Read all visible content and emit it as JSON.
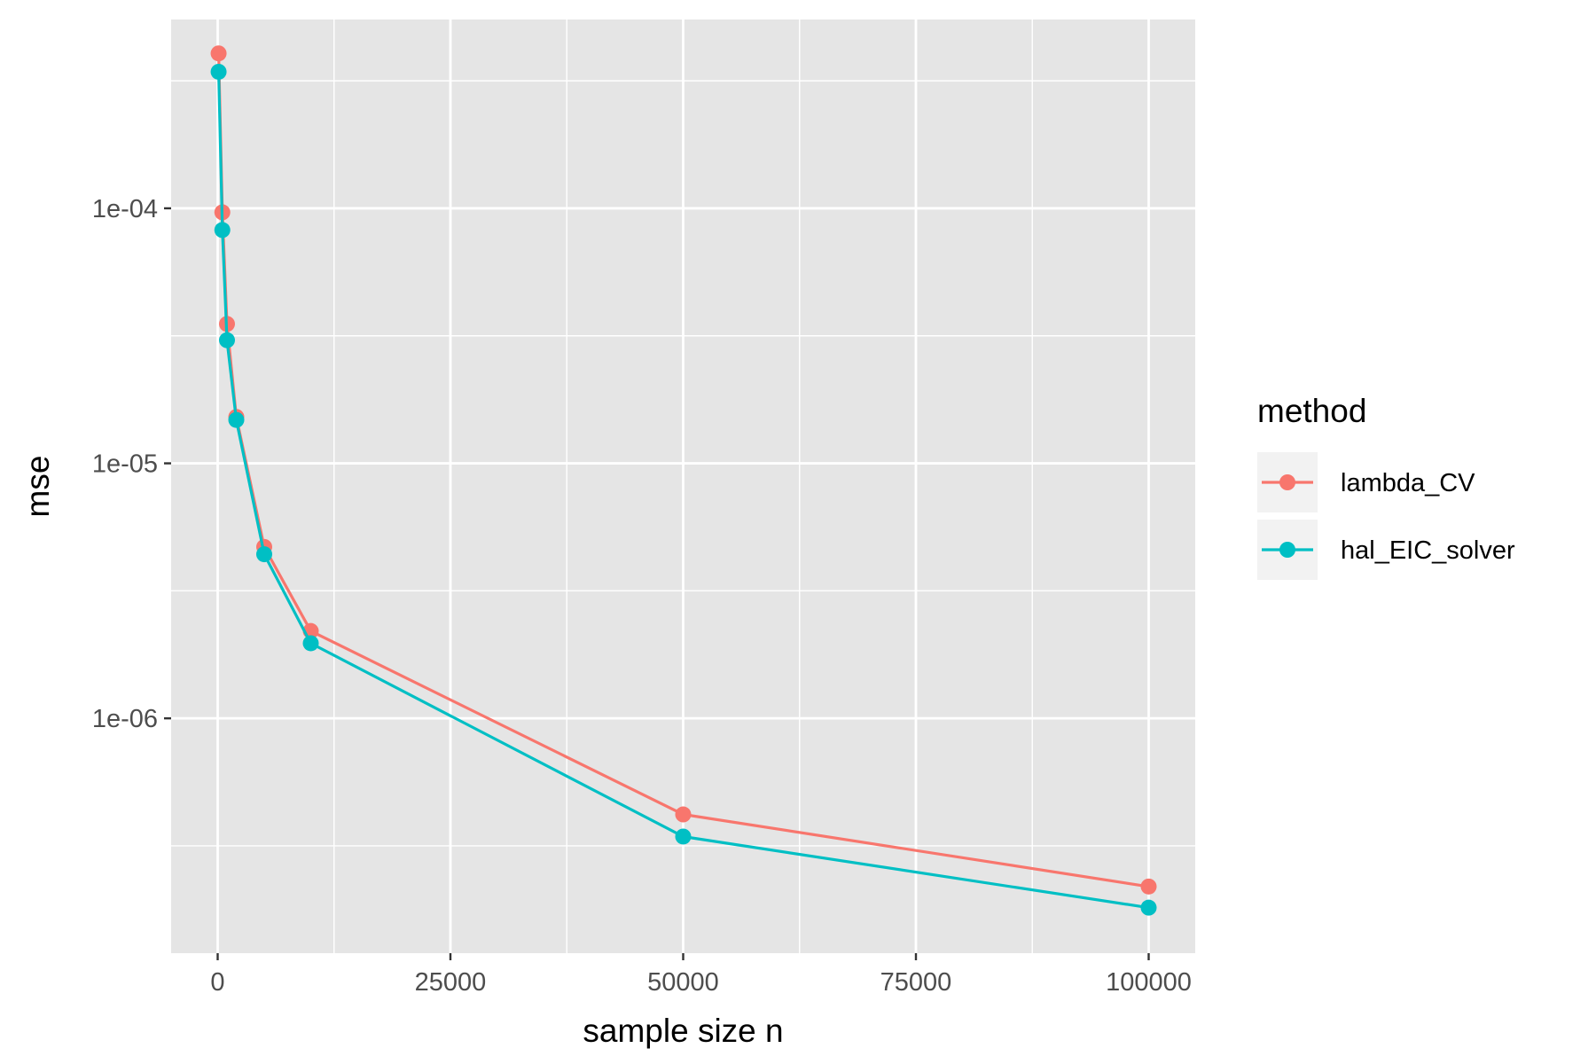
{
  "chart_data": {
    "type": "line",
    "xlabel": "sample size n",
    "ylabel": "mse",
    "x_scale": "linear",
    "y_scale": "log10",
    "xlim": [
      -5000,
      105000
    ],
    "ylim": [
      1.2e-07,
      0.00055
    ],
    "x_ticks": [
      0,
      25000,
      50000,
      75000,
      100000
    ],
    "x_tick_labels": [
      "0",
      "25000",
      "50000",
      "75000",
      "100000"
    ],
    "y_ticks": [
      1e-06,
      1e-05,
      0.0001
    ],
    "y_tick_labels": [
      "1e-06",
      "1e-05",
      "1e-04"
    ],
    "grid": true,
    "panel_background": "#e5e5e5",
    "legend": {
      "title": "method",
      "position": "right",
      "entries": [
        "lambda_CV",
        "hal_EIC_solver"
      ]
    },
    "series": [
      {
        "name": "lambda_CV",
        "color": "#f8766d",
        "x": [
          100,
          500,
          1000,
          2000,
          5000,
          10000,
          50000,
          100000
        ],
        "y": [
          0.000405,
          9.65e-05,
          3.52e-05,
          1.52e-05,
          4.7e-06,
          2.2e-06,
          4.2e-07,
          2.19e-07
        ]
      },
      {
        "name": "hal_EIC_solver",
        "color": "#00bfc4",
        "x": [
          100,
          500,
          1000,
          2000,
          5000,
          10000,
          50000,
          100000
        ],
        "y": [
          0.000343,
          8.22e-05,
          3.04e-05,
          1.48e-05,
          4.4e-06,
          1.97e-06,
          3.44e-07,
          1.81e-07
        ]
      }
    ]
  }
}
